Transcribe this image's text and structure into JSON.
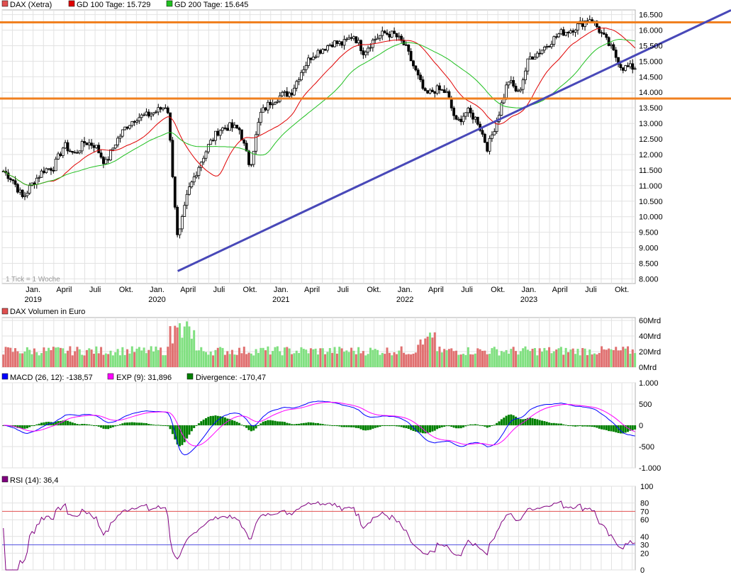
{
  "chart_data": [
    {
      "type": "candlestick",
      "legend": [
        {
          "label": "DAX (Xetra)",
          "color": "#e05050"
        },
        {
          "label": "GD 100 Tage: 15.729",
          "color": "#e00000"
        },
        {
          "label": "GD 200 Tage: 15.645",
          "color": "#20c020"
        }
      ],
      "y_ticks": [
        "16.500",
        "16.000",
        "15.500",
        "15.000",
        "14.500",
        "14.000",
        "13.500",
        "13.000",
        "12.500",
        "12.000",
        "11.500",
        "11.000",
        "10.500",
        "10.000",
        "9.500",
        "9.000",
        "8.500",
        "8.000"
      ],
      "ylim": [
        7850,
        16650
      ],
      "x_month_labels": [
        "Jan.",
        "April",
        "Juli",
        "Okt.",
        "Jan.",
        "April",
        "Juli",
        "Okt.",
        "Jan.",
        "April",
        "Juli",
        "Okt.",
        "Jan.",
        "April",
        "Juli",
        "Okt.",
        "Jan.",
        "April",
        "Juli",
        "Okt."
      ],
      "x_year_labels": [
        "2019",
        "2020",
        "2021",
        "2022",
        "2023"
      ],
      "tick_note": "1 Tick = 1 Woche",
      "horizontal_lines": [
        16250,
        13800
      ],
      "trendline": {
        "from": [
          "2020-03",
          8250
        ],
        "to": [
          "2023-12",
          15300
        ]
      },
      "price_path": [
        [
          "2018-10",
          11500
        ],
        [
          "2018-11",
          11200
        ],
        [
          "2018-12",
          10600
        ],
        [
          "2019-01",
          11100
        ],
        [
          "2019-02",
          11500
        ],
        [
          "2019-03",
          11600
        ],
        [
          "2019-04",
          12300
        ],
        [
          "2019-05",
          12000
        ],
        [
          "2019-06",
          12400
        ],
        [
          "2019-07",
          12300
        ],
        [
          "2019-08",
          11700
        ],
        [
          "2019-09",
          12400
        ],
        [
          "2019-10",
          12900
        ],
        [
          "2019-11",
          13200
        ],
        [
          "2019-12",
          13250
        ],
        [
          "2020-01",
          13400
        ],
        [
          "2020-02",
          13600
        ],
        [
          "2020-03",
          9200
        ],
        [
          "2020-04",
          10800
        ],
        [
          "2020-05",
          11600
        ],
        [
          "2020-06",
          12300
        ],
        [
          "2020-07",
          12800
        ],
        [
          "2020-08",
          12900
        ],
        [
          "2020-09",
          12800
        ],
        [
          "2020-10",
          11600
        ],
        [
          "2020-11",
          13300
        ],
        [
          "2020-12",
          13700
        ],
        [
          "2021-01",
          13900
        ],
        [
          "2021-02",
          14000
        ],
        [
          "2021-03",
          14700
        ],
        [
          "2021-04",
          15200
        ],
        [
          "2021-05",
          15400
        ],
        [
          "2021-06",
          15600
        ],
        [
          "2021-07",
          15550
        ],
        [
          "2021-08",
          15850
        ],
        [
          "2021-09",
          15300
        ],
        [
          "2021-10",
          15700
        ],
        [
          "2021-11",
          15900
        ],
        [
          "2021-12",
          15850
        ],
        [
          "2022-01",
          15500
        ],
        [
          "2022-02",
          14700
        ],
        [
          "2022-03",
          13900
        ],
        [
          "2022-04",
          14100
        ],
        [
          "2022-05",
          14000
        ],
        [
          "2022-06",
          13000
        ],
        [
          "2022-07",
          13400
        ],
        [
          "2022-08",
          13100
        ],
        [
          "2022-09",
          12200
        ],
        [
          "2022-10",
          13200
        ],
        [
          "2022-11",
          14400
        ],
        [
          "2022-12",
          13950
        ],
        [
          "2023-01",
          15100
        ],
        [
          "2023-02",
          15300
        ],
        [
          "2023-03",
          15600
        ],
        [
          "2023-04",
          15900
        ],
        [
          "2023-05",
          16000
        ],
        [
          "2023-06",
          16200
        ],
        [
          "2023-07",
          16400
        ],
        [
          "2023-08",
          15900
        ],
        [
          "2023-09",
          15400
        ],
        [
          "2023-10",
          14800
        ]
      ]
    },
    {
      "type": "bar",
      "legend": [
        {
          "label": "DAX Volumen in Euro",
          "color": "#e05050"
        }
      ],
      "y_ticks": [
        "60Mrd",
        "40Mrd",
        "20Mrd",
        "0Mrd"
      ],
      "ylim": [
        0,
        60
      ]
    },
    {
      "type": "line",
      "legend": [
        {
          "label": "MACD (26, 12): -138,57",
          "color": "#0000ff"
        },
        {
          "label": "EXP (9): 31,896",
          "color": "#ff00ff"
        },
        {
          "label": "Divergence: -170,47",
          "color": "#008000"
        }
      ],
      "y_ticks": [
        "1.000",
        "500",
        "0",
        "-500",
        "-1.000"
      ],
      "ylim": [
        -1000,
        1000
      ]
    },
    {
      "type": "line",
      "legend": [
        {
          "label": "RSI (14): 36,4",
          "color": "#800080"
        }
      ],
      "y_ticks": [
        "100",
        "80",
        "70",
        "60",
        "40",
        "30",
        "20",
        "0"
      ],
      "ylim": [
        0,
        100
      ],
      "levels": [
        70,
        30
      ]
    }
  ]
}
